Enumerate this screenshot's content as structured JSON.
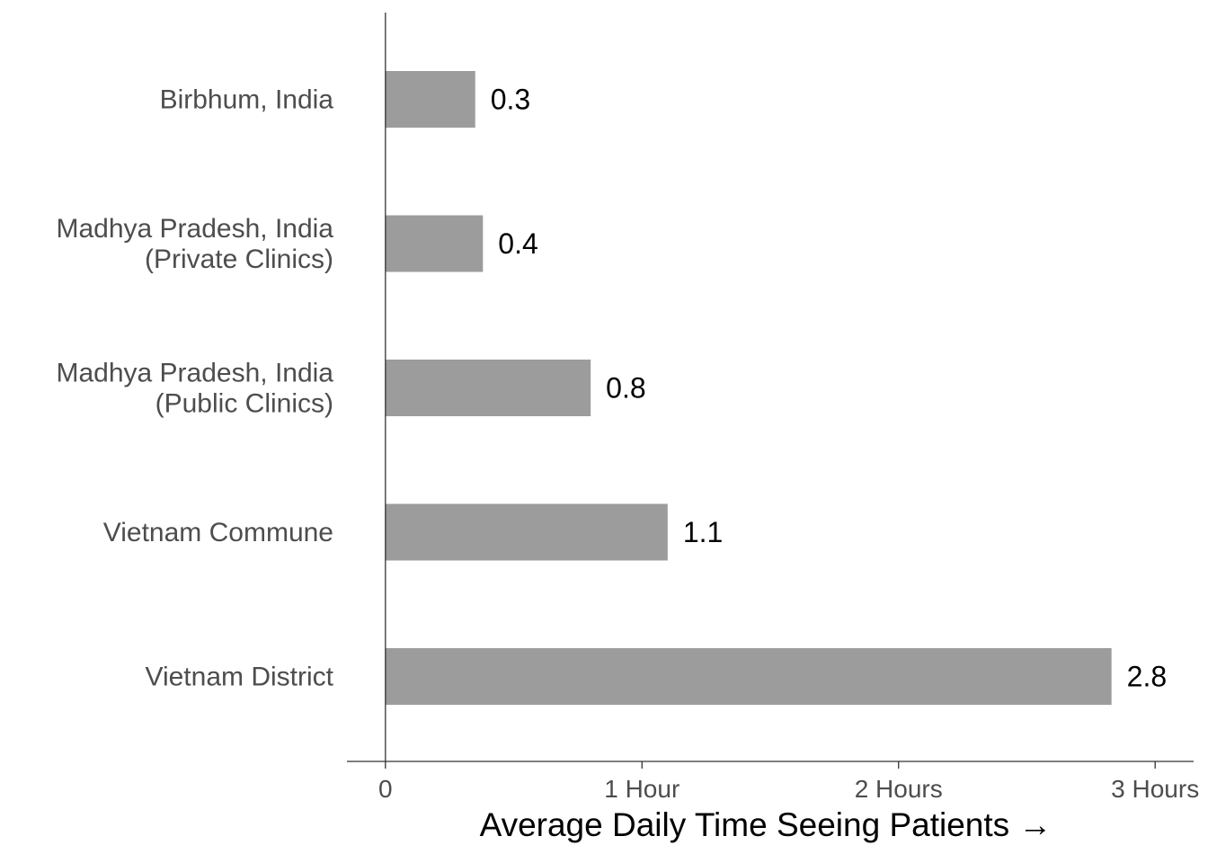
{
  "chart_data": {
    "type": "bar",
    "orientation": "horizontal",
    "categories": [
      [
        "Birbhum, India"
      ],
      [
        "Madhya Pradesh, India",
        "(Private Clinics)"
      ],
      [
        "Madhya Pradesh, India",
        "(Public Clinics)"
      ],
      [
        "Vietnam Commune"
      ],
      [
        "Vietnam District"
      ]
    ],
    "values": [
      0.35,
      0.38,
      0.8,
      1.1,
      2.83
    ],
    "value_labels": [
      "0.3",
      "0.4",
      "0.8",
      "1.1",
      "2.8"
    ],
    "xlabel": "Average Daily Time Seeing Patients →",
    "xlim": [
      -0.15,
      3.15
    ],
    "x_ticks": [
      0,
      1,
      2,
      3
    ],
    "x_tick_labels": [
      "0",
      "1 Hour",
      "2 Hours",
      "3 Hours"
    ],
    "grid": false,
    "bar_color": "#9c9c9c",
    "axis_color": "#333333"
  }
}
